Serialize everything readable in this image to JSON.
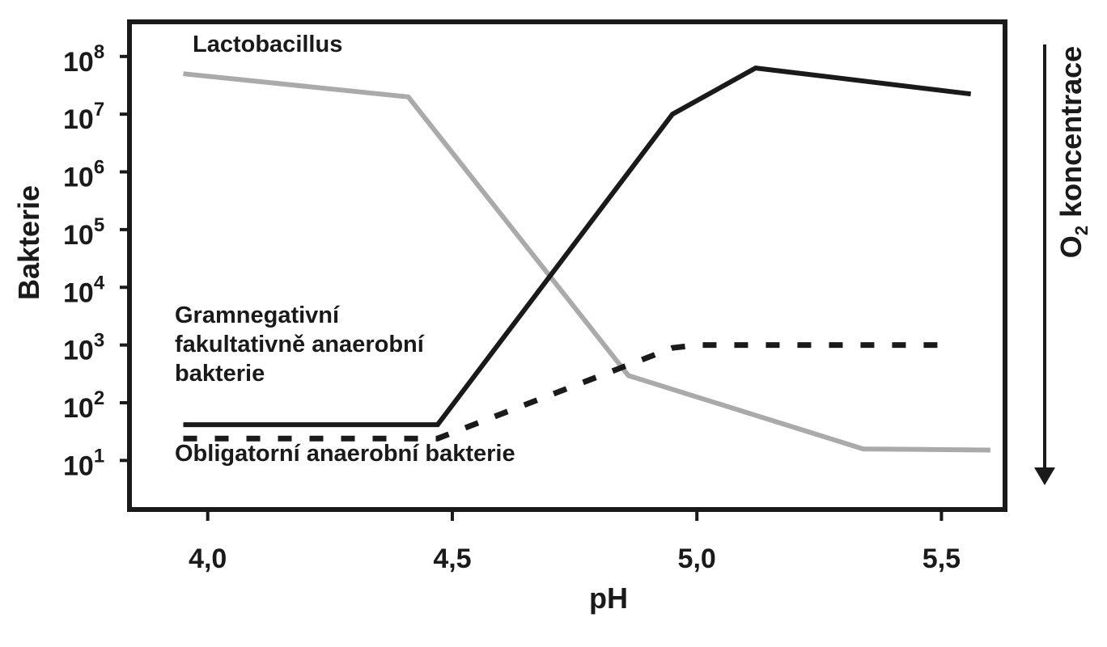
{
  "chart_data": {
    "type": "line",
    "title": "",
    "xlabel": "pH",
    "ylabel": "Bakterie",
    "right_axis_label": {
      "base": "O",
      "subscript": "2",
      "rest": " koncentrace"
    },
    "x_ticks": [
      "4,0",
      "4,5",
      "5,0",
      "5,5"
    ],
    "x_tick_values": [
      4.0,
      4.5,
      5.0,
      5.5
    ],
    "y_scale": "log",
    "y_ticks": [
      {
        "base": "10",
        "exp": "8",
        "value": 100000000
      },
      {
        "base": "10",
        "exp": "7",
        "value": 10000000
      },
      {
        "base": "10",
        "exp": "6",
        "value": 1000000
      },
      {
        "base": "10",
        "exp": "5",
        "value": 100000
      },
      {
        "base": "10",
        "exp": "4",
        "value": 10000
      },
      {
        "base": "10",
        "exp": "3",
        "value": 1000
      },
      {
        "base": "10",
        "exp": "2",
        "value": 100
      },
      {
        "base": "10",
        "exp": "1",
        "value": 10
      }
    ],
    "xlim": [
      3.84,
      5.63
    ],
    "ylim_log10": [
      0.15,
      8.6
    ],
    "grid": false,
    "series": [
      {
        "name": "Lactobacillus",
        "color": "#aaaaaa",
        "style": "solid",
        "points": [
          [
            3.95,
            7.7
          ],
          [
            4.41,
            7.3
          ],
          [
            4.86,
            2.47
          ],
          [
            5.34,
            1.2
          ],
          [
            5.6,
            1.18
          ]
        ]
      },
      {
        "name": "Gramnegativní fakultativně anaerobní bakterie",
        "label_lines": [
          "Gramnegativní",
          "fakultativně anaerobní",
          "bakterie"
        ],
        "color": "#1a1a1a",
        "style": "solid",
        "points": [
          [
            3.95,
            1.62
          ],
          [
            4.47,
            1.62
          ],
          [
            4.95,
            7.0
          ],
          [
            5.12,
            7.8
          ],
          [
            5.56,
            7.35
          ]
        ]
      },
      {
        "name": "Obligatorní anaerobní bakterie",
        "color": "#1a1a1a",
        "style": "dashed",
        "points": [
          [
            3.95,
            1.38
          ],
          [
            4.47,
            1.38
          ],
          [
            4.95,
            2.95
          ],
          [
            5.0,
            3.0
          ],
          [
            5.5,
            3.0
          ]
        ]
      }
    ]
  }
}
